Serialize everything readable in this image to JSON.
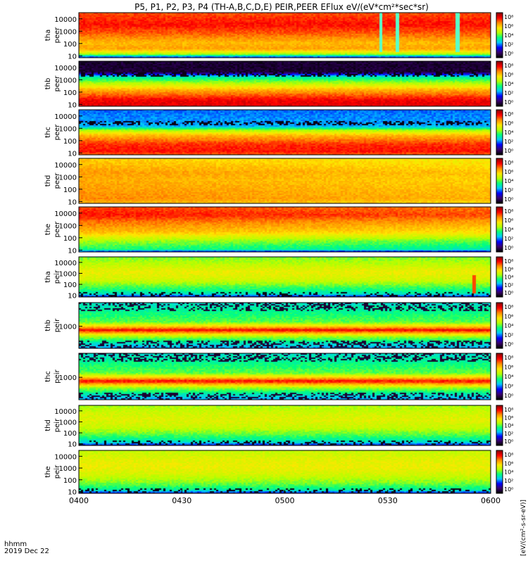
{
  "chart_data": {
    "type": "heatmap",
    "title": "P5, P1, P2, P3, P4 (TH-A,B,C,D,E) PEIR,PEER EFlux eV/(eV*cm²*sec*sr)",
    "time_label_line1": "hhmm",
    "time_label_line2": "2019 Dec 22",
    "x_ticks": [
      "0400",
      "0430",
      "0500",
      "0530",
      "0600"
    ],
    "x_range_minutes": [
      0,
      120
    ],
    "colorbar_ticks": [
      "10⁸",
      "10⁶",
      "10⁴",
      "10²",
      "10⁰"
    ],
    "colorbar_units": "[eV/(cm²-s-sr-eV)]",
    "colormap": [
      "#000000",
      "#3a006e",
      "#0000ff",
      "#00c8ff",
      "#00ff7f",
      "#b4ff00",
      "#ffe600",
      "#ff8c00",
      "#ff0000",
      "#8b0000"
    ],
    "panels": [
      {
        "id": "tha-peer",
        "label1": "tha",
        "label2": "peer",
        "y_ticks": [
          "10000",
          "1000",
          "100",
          "10"
        ],
        "y_log_range": [
          0.85,
          4.5
        ]
      },
      {
        "id": "thb-peer",
        "label1": "thb",
        "label2": "peer",
        "y_ticks": [
          "10000",
          "1000",
          "100",
          "10"
        ],
        "y_log_range": [
          0.85,
          4.5
        ]
      },
      {
        "id": "thc-peer",
        "label1": "thc",
        "label2": "peer",
        "y_ticks": [
          "10000",
          "1000",
          "100",
          "10"
        ],
        "y_log_range": [
          0.85,
          4.5
        ]
      },
      {
        "id": "thd-peer",
        "label1": "thd",
        "label2": "peer",
        "y_ticks": [
          "10000",
          "1000",
          "100",
          "10"
        ],
        "y_log_range": [
          0.85,
          4.5
        ]
      },
      {
        "id": "the-peer",
        "label1": "the",
        "label2": "peer",
        "y_ticks": [
          "10000",
          "1000",
          "100",
          "10"
        ],
        "y_log_range": [
          0.85,
          4.5
        ]
      },
      {
        "id": "tha-peir",
        "label1": "tha",
        "label2": "peir",
        "y_ticks": [
          "10000",
          "1000",
          "100",
          "10"
        ],
        "y_log_range": [
          0.85,
          4.5
        ]
      },
      {
        "id": "thb-peir",
        "label1": "thb",
        "label2": "peir",
        "y_ticks": [
          "1000"
        ],
        "y_log_range": [
          1.6,
          4.5
        ]
      },
      {
        "id": "thc-peir",
        "label1": "thc",
        "label2": "peir",
        "y_ticks": [
          "1000"
        ],
        "y_log_range": [
          1.6,
          4.5
        ]
      },
      {
        "id": "thd-peir",
        "label1": "thd",
        "label2": "peir",
        "y_ticks": [
          "10000",
          "1000",
          "100",
          "10"
        ],
        "y_log_range": [
          0.85,
          4.5
        ]
      },
      {
        "id": "the-peir",
        "label1": "the",
        "label2": "peir",
        "y_ticks": [
          "10000",
          "1000",
          "100",
          "10"
        ],
        "y_log_range": [
          0.85,
          4.5
        ]
      }
    ]
  }
}
